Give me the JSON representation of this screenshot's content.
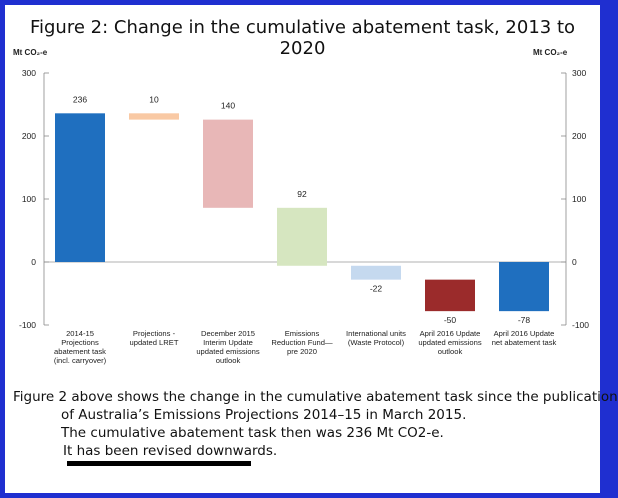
{
  "figure": {
    "title": "Figure 2: Change in the cumulative abatement task, 2013 to 2020"
  },
  "chart_data": {
    "type": "bar",
    "subtype": "waterfall",
    "left_axis_label": "Mt CO₂-e",
    "right_axis_label": "Mt CO₂-e",
    "ylim": [
      -100,
      300
    ],
    "ticks": [
      300,
      200,
      100,
      0,
      -100
    ],
    "tick_labels": [
      "300",
      "200",
      "100",
      "0",
      "-100"
    ],
    "grid": false,
    "categories": [
      [
        "2014-15",
        "Projections",
        "abatement task",
        "(incl. carryover)"
      ],
      [
        "Projections -",
        "updated LRET"
      ],
      [
        "December 2015",
        "Interim Update",
        "updated emissions",
        "outlook"
      ],
      [
        "Emissions",
        "Reduction Fund—",
        "pre 2020"
      ],
      [
        "International units",
        "(Waste Protocol)"
      ],
      [
        "April 2016 Update",
        "updated emissions",
        "outlook"
      ],
      [
        "April 2016 Update",
        "net abatement task"
      ]
    ],
    "bars": [
      {
        "start": 0,
        "end": 236,
        "label": "236",
        "color": "#1f6fbf"
      },
      {
        "start": 226,
        "end": 236,
        "label": "10",
        "color": "#f9c9a4"
      },
      {
        "start": 86,
        "end": 226,
        "label": "140",
        "color": "#e8b7b7"
      },
      {
        "start": -6,
        "end": 86,
        "label": "92",
        "color": "#d6e6c0"
      },
      {
        "start": -28,
        "end": -6,
        "label": "-22",
        "color": "#c5d9ef"
      },
      {
        "start": -78,
        "end": -28,
        "label": "-50",
        "color": "#9b2b2b"
      },
      {
        "start": -78,
        "end": 0,
        "label": "-78",
        "color": "#1f6fbf"
      }
    ]
  },
  "caption": {
    "line1": "Figure 2 above shows the change in the cumulative abatement task since the publication",
    "line2": "of Australia’s Emissions Projections 2014–15 in March 2015.",
    "line3": "The cumulative abatement task then was 236 Mt CO2-e.",
    "line4": "It has been revised downwards."
  }
}
